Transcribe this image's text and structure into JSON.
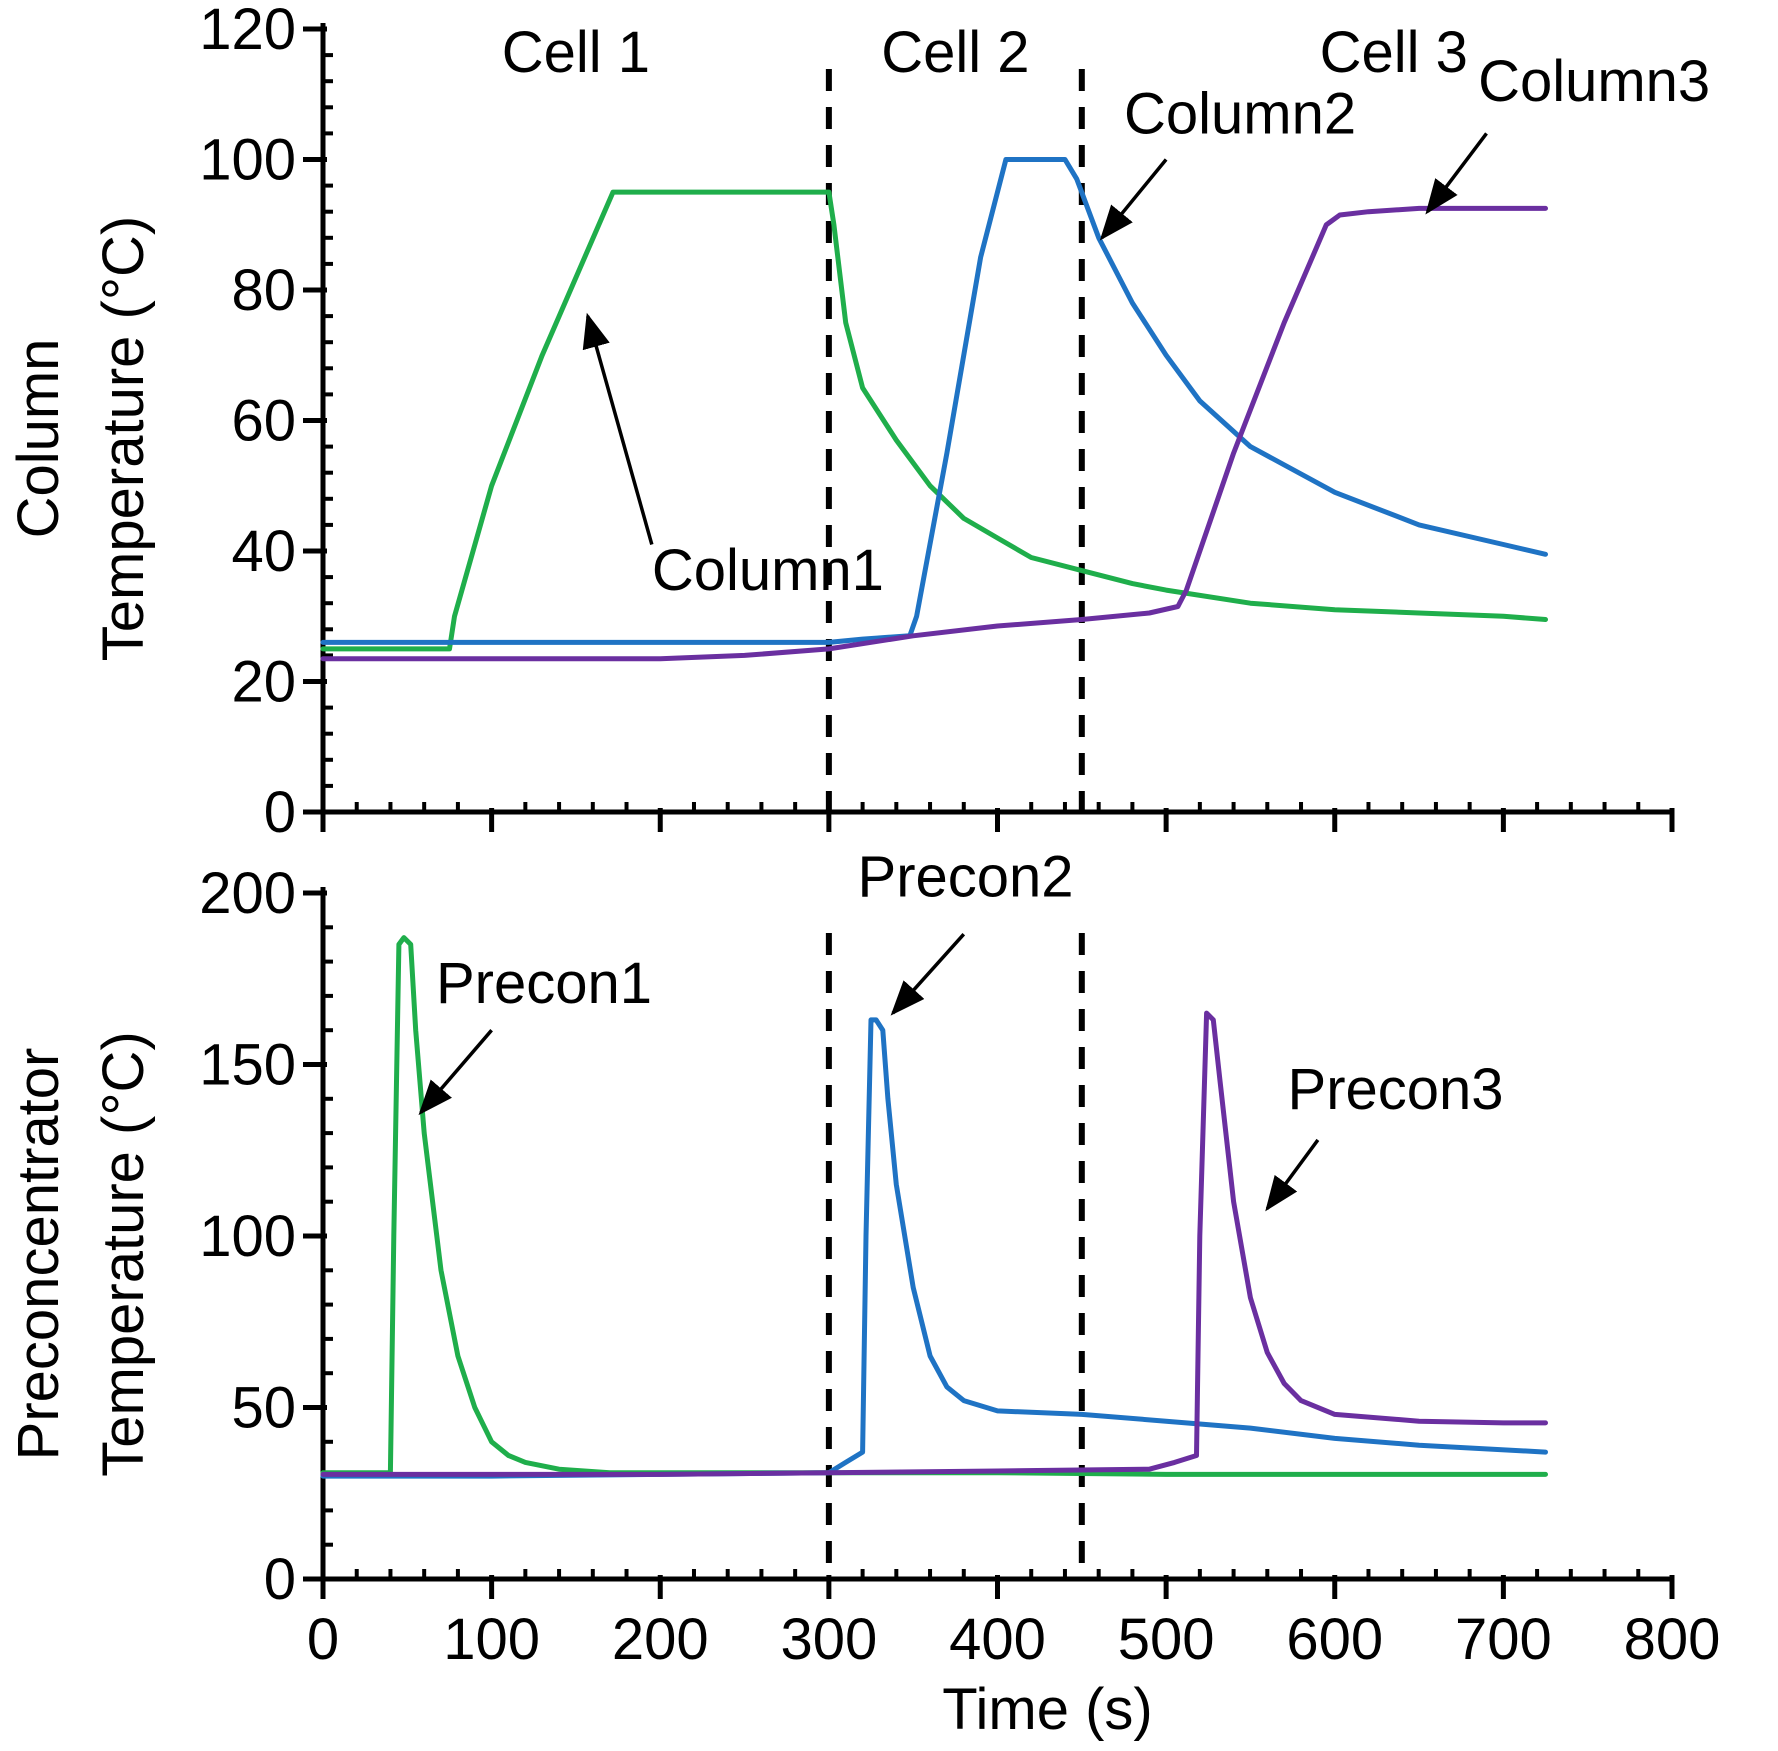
{
  "chart_data": [
    {
      "type": "line",
      "panel": "top",
      "ylabel_lines": [
        "Column",
        "Temperature (°C)"
      ],
      "xlim": [
        0,
        800
      ],
      "ylim": [
        0,
        120
      ],
      "yticks": [
        0,
        20,
        40,
        60,
        80,
        100,
        120
      ],
      "x_tick_labels_shown": false,
      "cell_dividers": [
        300,
        450
      ],
      "cell_labels": [
        {
          "text": "Cell 1",
          "x": 150
        },
        {
          "text": "Cell 2",
          "x": 375
        },
        {
          "text": "Cell 3",
          "x": 635
        }
      ],
      "series": [
        {
          "name": "Column1",
          "color": "#1fae4b",
          "x": [
            0,
            75,
            78,
            100,
            130,
            172,
            200,
            250,
            300,
            303,
            310,
            320,
            340,
            360,
            380,
            400,
            420,
            450,
            480,
            500,
            550,
            600,
            650,
            700,
            725
          ],
          "y": [
            25,
            25,
            30,
            50,
            70,
            95,
            95,
            95,
            95,
            90,
            75,
            65,
            57,
            50,
            45,
            42,
            39,
            37,
            35,
            34,
            32,
            31,
            30.5,
            30,
            29.5
          ]
        },
        {
          "name": "Column2",
          "color": "#1f73c4",
          "x": [
            0,
            100,
            200,
            300,
            320,
            348,
            352,
            370,
            390,
            405,
            440,
            447,
            460,
            480,
            500,
            520,
            550,
            600,
            650,
            700,
            725
          ],
          "y": [
            26,
            26,
            26,
            26,
            26.5,
            27,
            30,
            55,
            85,
            100,
            100,
            97,
            88,
            78,
            70,
            63,
            56,
            49,
            44,
            41,
            39.5
          ]
        },
        {
          "name": "Column3",
          "color": "#6a2fa0",
          "x": [
            0,
            100,
            200,
            250,
            300,
            350,
            400,
            450,
            490,
            507,
            512,
            540,
            570,
            595,
            603,
            620,
            650,
            700,
            725
          ],
          "y": [
            23.5,
            23.5,
            23.5,
            24,
            25,
            27,
            28.5,
            29.5,
            30.5,
            31.5,
            34,
            55,
            75,
            90,
            91.5,
            92,
            92.5,
            92.5,
            92.5
          ]
        }
      ],
      "annotations": [
        {
          "text": "Column1",
          "x": 195,
          "y": 34,
          "arrow_from": [
            195,
            41
          ],
          "arrow_to": [
            157,
            76
          ]
        },
        {
          "text": "Column2",
          "x": 475,
          "y": 104,
          "arrow_from": [
            500,
            100
          ],
          "arrow_to": [
            462,
            88
          ]
        },
        {
          "text": "Column3",
          "x": 685,
          "y": 109,
          "arrow_from": [
            690,
            104
          ],
          "arrow_to": [
            655,
            92
          ]
        }
      ]
    },
    {
      "type": "line",
      "panel": "bottom",
      "ylabel_lines": [
        "Preconcentrator",
        "Temperature (°C)"
      ],
      "xlabel": "Time (s)",
      "xlim": [
        0,
        800
      ],
      "ylim": [
        0,
        200
      ],
      "yticks": [
        0,
        50,
        100,
        150,
        200
      ],
      "xticks": [
        0,
        100,
        200,
        300,
        400,
        500,
        600,
        700,
        800
      ],
      "cell_dividers": [
        300,
        450
      ],
      "series": [
        {
          "name": "Precon1",
          "color": "#1fae4b",
          "x": [
            0,
            40,
            42,
            45,
            48,
            52,
            55,
            60,
            70,
            80,
            90,
            100,
            110,
            120,
            140,
            170,
            200,
            300,
            400,
            500,
            600,
            725
          ],
          "y": [
            31,
            31,
            100,
            185,
            187,
            185,
            160,
            130,
            90,
            65,
            50,
            40,
            36,
            34,
            32,
            31,
            31,
            31,
            31,
            30.5,
            30.5,
            30.5
          ]
        },
        {
          "name": "Precon2",
          "color": "#1f73c4",
          "x": [
            0,
            100,
            200,
            300,
            310,
            320,
            322,
            325,
            328,
            332,
            335,
            340,
            350,
            360,
            370,
            380,
            400,
            450,
            500,
            550,
            600,
            650,
            725
          ],
          "y": [
            30,
            30,
            30.5,
            31,
            34,
            37,
            100,
            163,
            163,
            160,
            140,
            115,
            85,
            65,
            56,
            52,
            49,
            48,
            46,
            44,
            41,
            39,
            37
          ]
        },
        {
          "name": "Precon3",
          "color": "#6a2fa0",
          "x": [
            0,
            100,
            200,
            300,
            400,
            490,
            505,
            518,
            520,
            524,
            528,
            532,
            540,
            550,
            560,
            570,
            580,
            600,
            650,
            700,
            725
          ],
          "y": [
            30.5,
            30.5,
            30.5,
            31,
            31.5,
            32,
            34,
            36,
            100,
            165,
            163,
            145,
            110,
            82,
            66,
            57,
            52,
            48,
            46,
            45.5,
            45.5
          ]
        }
      ],
      "annotations": [
        {
          "text": "Precon1",
          "x": 67,
          "y": 168,
          "arrow_from": [
            100,
            160
          ],
          "arrow_to": [
            58,
            136
          ]
        },
        {
          "text": "Precon2",
          "x": 317,
          "y": 199,
          "arrow_from": [
            380,
            188
          ],
          "arrow_to": [
            338,
            165
          ]
        },
        {
          "text": "Precon3",
          "x": 572,
          "y": 137,
          "arrow_from": [
            590,
            128
          ],
          "arrow_to": [
            560,
            108
          ]
        }
      ]
    }
  ]
}
